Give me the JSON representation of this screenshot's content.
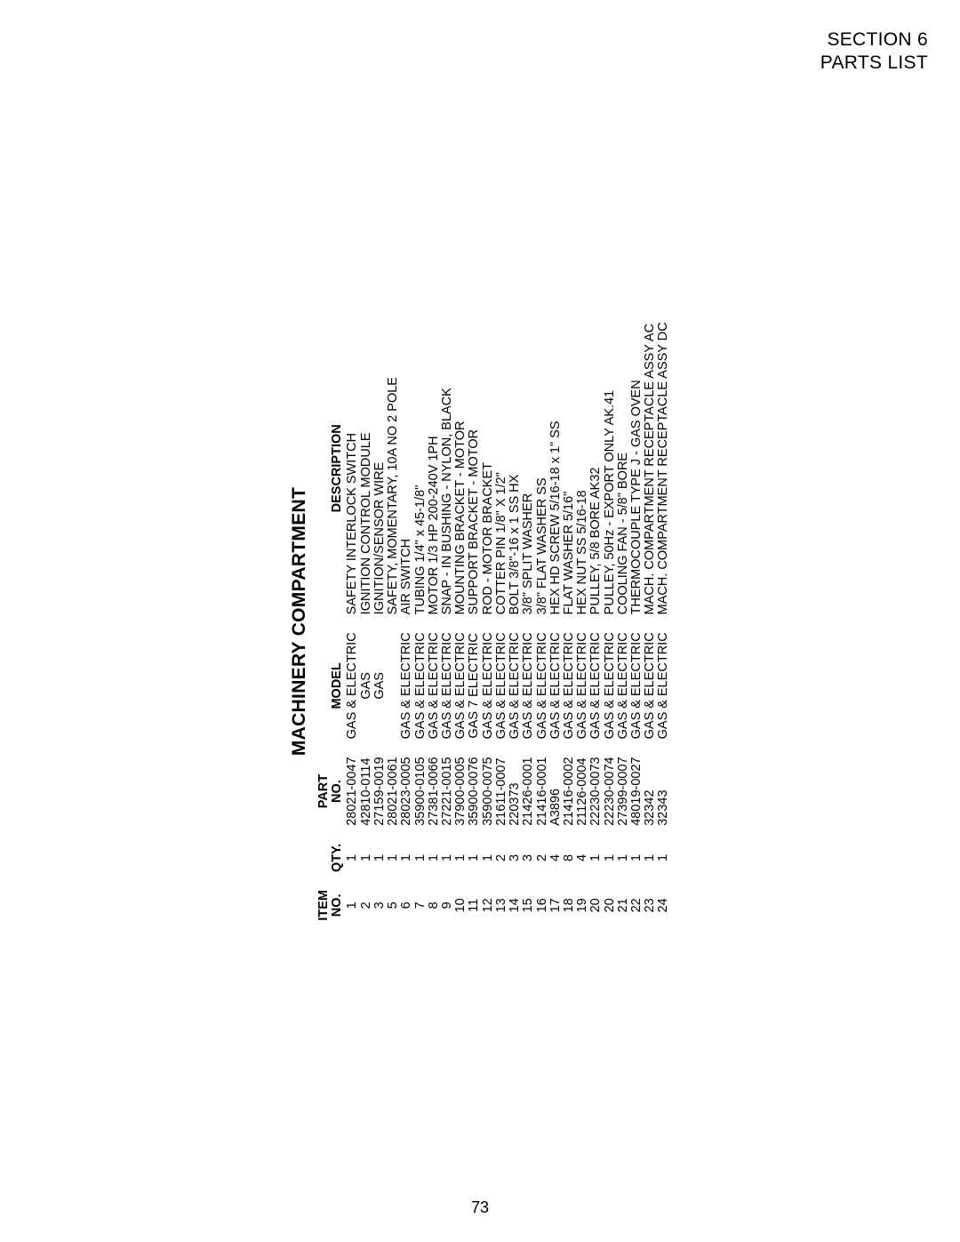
{
  "page": {
    "section_line1": "SECTION 6",
    "section_line2": "PARTS LIST",
    "page_number": "73"
  },
  "table": {
    "title": "MACHINERY COMPARTMENT",
    "headers": {
      "item_no_l1": "ITEM",
      "item_no_l2": "NO.",
      "qty": "QTY.",
      "part_no_l1": "PART",
      "part_no_l2": "NO.",
      "model": "MODEL",
      "description": "DESCRIPTION"
    },
    "rows": [
      {
        "item": "1",
        "qty": "1",
        "part": "28021-0047",
        "model": "GAS & ELECTRIC",
        "desc": "SAFETY INTERLOCK SWITCH"
      },
      {
        "item": "2",
        "qty": "1",
        "part": "42810-0114",
        "model": "GAS",
        "desc": "IGNITION CONTROL MODULE"
      },
      {
        "item": "3",
        "qty": "1",
        "part": "27159-0019",
        "model": "GAS",
        "desc": "IGNITION/SENSOR WIRE"
      },
      {
        "item": "5",
        "qty": "1",
        "part": "28021-0061",
        "model": "",
        "desc": "SAFETY, MOMENTARY, 10A NO 2 POLE"
      },
      {
        "item": "6",
        "qty": "1",
        "part": "28023-0005",
        "model": "GAS & ELECTRIC",
        "desc": "AIR SWITCH"
      },
      {
        "item": "7",
        "qty": "1",
        "part": "35900-0105",
        "model": "GAS & ELECTRIC",
        "desc": "TUBING 1/4\" x 45-1/8\""
      },
      {
        "item": "8",
        "qty": "1",
        "part": "27381-0066",
        "model": "GAS & ELECTRIC",
        "desc": "MOTOR 1/3 HP 200-240V   1PH"
      },
      {
        "item": "9",
        "qty": "1",
        "part": "27221-0015",
        "model": "GAS & ELECTRIC",
        "desc": "SNAP - IN BUSHING - NYLON, BLACK"
      },
      {
        "item": "10",
        "qty": "1",
        "part": "37900-0005",
        "model": "GAS & ELECTRIC",
        "desc": "MOUNTING BRACKET - MOTOR"
      },
      {
        "item": "11",
        "qty": "1",
        "part": "35900-0076",
        "model": "GAS 7 ELECTRIC",
        "desc": "SUPPORT BRACKET - MOTOR"
      },
      {
        "item": "12",
        "qty": "1",
        "part": "35900-0075",
        "model": "GAS & ELECTRIC",
        "desc": "ROD - MOTOR BRACKET"
      },
      {
        "item": "13",
        "qty": "2",
        "part": "21611-0007",
        "model": "GAS & ELECTRIC",
        "desc": "COTTER PIN 1/8\" X 1/2\""
      },
      {
        "item": "14",
        "qty": "3",
        "part": "220373",
        "model": "GAS & ELECTRIC",
        "desc": "BOLT 3/8\"-16 x 1 SS HX"
      },
      {
        "item": "15",
        "qty": "3",
        "part": "21426-0001",
        "model": "GAS & ELECTRIC",
        "desc": "3/8\" SPLIT WASHER"
      },
      {
        "item": "16",
        "qty": "2",
        "part": "21416-0001",
        "model": "GAS & ELECTRIC",
        "desc": "3/8\" FLAT WASHER SS"
      },
      {
        "item": "17",
        "qty": "4",
        "part": "A3896",
        "model": "GAS & ELECTRIC",
        "desc": "HEX HD SCREW 5/16-18 x 1\" SS"
      },
      {
        "item": "18",
        "qty": "8",
        "part": "21416-0002",
        "model": "GAS & ELECTRIC",
        "desc": "FLAT WASHER 5/16\""
      },
      {
        "item": "19",
        "qty": "4",
        "part": "21126-0004",
        "model": "GAS & ELECTRIC",
        "desc": "HEX NUT SS 5/16-18"
      },
      {
        "item": "20",
        "qty": "1",
        "part": "22230-0073",
        "model": "GAS & ELECTRIC",
        "desc": "PULLEY, 5/8 BORE AK32"
      },
      {
        "item": "20",
        "qty": "1",
        "part": "22230-0074",
        "model": "GAS & ELECTRIC",
        "desc": "PULLEY, 50Hz - EXPORT ONLY AK.41"
      },
      {
        "item": "21",
        "qty": "1",
        "part": "27399-0007",
        "model": "GAS & ELECTRIC",
        "desc": "COOLING FAN - 5/8\" BORE"
      },
      {
        "item": "22",
        "qty": "1",
        "part": "48019-0027",
        "model": "GAS & ELECTRIC",
        "desc": "THERMOCOUPLE TYPE J - GAS OVEN"
      },
      {
        "item": "23",
        "qty": "1",
        "part": "32342",
        "model": "GAS & ELECTRIC",
        "desc": "MACH. COMPARTMENT RECEPTACLE ASSY AC"
      },
      {
        "item": "24",
        "qty": "1",
        "part": "32343",
        "model": "GAS & ELECTRIC",
        "desc": "MACH. COMPARTMENT RECEPTACLE ASSY DC"
      }
    ]
  }
}
